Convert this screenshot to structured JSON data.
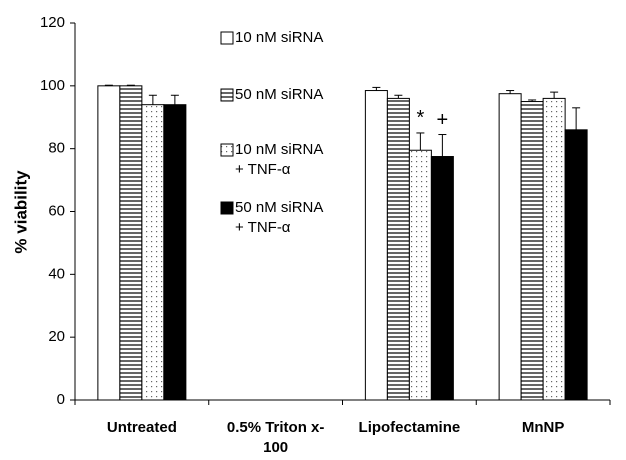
{
  "chart_data": {
    "type": "bar",
    "y_label": "% viability",
    "categories": [
      "Untreated",
      "0.5% Triton x-\n100",
      "Lipofectamine",
      "MnNP"
    ],
    "ylim": [
      0,
      120
    ],
    "yticks": [
      0,
      20,
      40,
      60,
      80,
      100,
      120
    ],
    "series": [
      {
        "name": "10 nM siRNA",
        "color": "#ffffff",
        "pattern": "solid",
        "values": [
          100,
          0,
          98.5,
          97.5
        ],
        "errors": [
          0.2,
          0,
          1,
          1
        ],
        "annotations": [
          null,
          null,
          null,
          null
        ]
      },
      {
        "name": "50 nM siRNA",
        "color": "#ffffff",
        "pattern": "hlines",
        "values": [
          100,
          0,
          96,
          95
        ],
        "errors": [
          0.2,
          0,
          1,
          0.5
        ],
        "annotations": [
          null,
          null,
          null,
          null
        ]
      },
      {
        "name": "10 nM siRNA\n+ TNF-α",
        "color": "#ffffff",
        "pattern": "dots",
        "values": [
          94,
          0,
          79.5,
          96
        ],
        "errors": [
          3,
          0,
          5.5,
          2
        ],
        "annotations": [
          null,
          null,
          "*",
          null
        ]
      },
      {
        "name": "50 nM siRNA\n+ TNF-α",
        "color": "#000000",
        "pattern": "solid",
        "values": [
          94,
          0,
          77.5,
          86
        ],
        "errors": [
          3,
          0,
          7,
          7
        ],
        "annotations": [
          null,
          null,
          "+",
          null
        ]
      }
    ]
  }
}
